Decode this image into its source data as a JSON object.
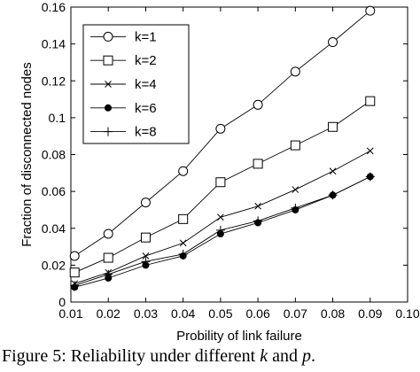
{
  "chart_data": {
    "type": "line",
    "title": "",
    "xlabel": "Probility of link failure",
    "ylabel": "Fraction of disconnected nodes",
    "xlim": [
      0.01,
      0.1
    ],
    "ylim": [
      0,
      0.16
    ],
    "xticks": [
      "0.01",
      "0.02",
      "0.03",
      "0.04",
      "0.05",
      "0.06",
      "0.07",
      "0.08",
      "0.09",
      "0.10"
    ],
    "yticks": [
      "0",
      "0.02",
      "0.04",
      "0.06",
      "0.08",
      "0.1",
      "0.12",
      "0.14",
      "0.16"
    ],
    "legend_position": "top-left",
    "grid": false,
    "x": [
      0.011,
      0.02,
      0.03,
      0.04,
      0.05,
      0.06,
      0.07,
      0.08,
      0.09
    ],
    "series": [
      {
        "name": "k=1",
        "marker": "circle",
        "values": [
          0.025,
          0.037,
          0.054,
          0.071,
          0.094,
          0.107,
          0.125,
          0.141,
          0.158
        ]
      },
      {
        "name": "k=2",
        "marker": "square",
        "values": [
          0.016,
          0.024,
          0.035,
          0.045,
          0.065,
          0.075,
          0.085,
          0.095,
          0.109
        ]
      },
      {
        "name": "k=4",
        "marker": "x",
        "values": [
          0.01,
          0.016,
          0.025,
          0.032,
          0.046,
          0.052,
          0.061,
          0.071,
          0.082
        ]
      },
      {
        "name": "k=6",
        "marker": "filled-circle",
        "values": [
          0.008,
          0.013,
          0.02,
          0.025,
          0.037,
          0.043,
          0.05,
          0.058,
          0.068
        ]
      },
      {
        "name": "k=8",
        "marker": "plus",
        "values": [
          0.009,
          0.015,
          0.022,
          0.026,
          0.039,
          0.044,
          0.051,
          0.058,
          0.068
        ]
      }
    ]
  },
  "caption": {
    "prefix": "Figure 5: Reliability under different ",
    "var1": "k",
    "middle": " and ",
    "var2": "p",
    "suffix": "."
  }
}
